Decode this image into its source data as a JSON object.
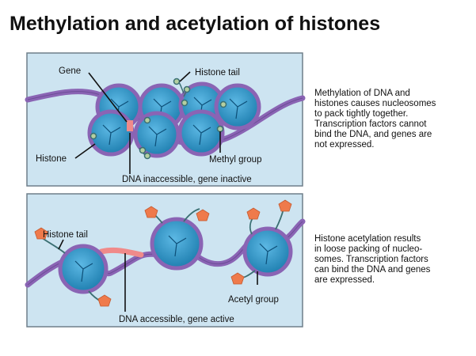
{
  "title": "Methylation and acetylation of histones",
  "colors": {
    "panel_fill": "#cde4f1",
    "panel_border": "#6f7f8a",
    "dna_strand": "#8a64b4",
    "dna_edge": "#5a3c84",
    "nucleosome_fill": "#2f93c4",
    "nucleosome_rim": "#8a64b4",
    "tail_line": "#3a6f72",
    "methyl_group": "#b4cfa0",
    "acetyl_group": "#ef7a4b",
    "accessible_dna": "#f08a8a"
  },
  "panels": {
    "methylation": {
      "labels": {
        "gene": "Gene",
        "histone_tail": "Histone tail",
        "histone": "Histone",
        "methyl_group": "Methyl group",
        "caption": "DNA inaccessible, gene inactive"
      },
      "description": [
        "Methylation of DNA and",
        "histones causes nucleosomes",
        "to pack tightly together.",
        "Transcription factors cannot",
        "bind the DNA, and genes are",
        "not expressed."
      ]
    },
    "acetylation": {
      "labels": {
        "histone_tail": "Histone tail",
        "acetyl_group": "Acetyl group",
        "caption": "DNA accessible, gene active"
      },
      "description": [
        "Histone acetylation results",
        "in loose packing of nucleo-",
        "somes. Transcription factors",
        "can bind the DNA and genes",
        "are expressed."
      ]
    }
  }
}
